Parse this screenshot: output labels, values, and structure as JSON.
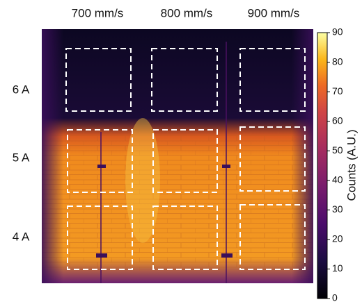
{
  "column_labels": [
    "700 mm/s",
    "800 mm/s",
    "900 mm/s"
  ],
  "row_labels": [
    "6 A",
    "5 A",
    "4 A"
  ],
  "colorbar": {
    "label": "Counts (A.U.)",
    "lim": [
      0,
      90
    ],
    "ticks": [
      0,
      10,
      20,
      30,
      40,
      50,
      60,
      70,
      80,
      90
    ],
    "colormap": "inferno"
  }
}
